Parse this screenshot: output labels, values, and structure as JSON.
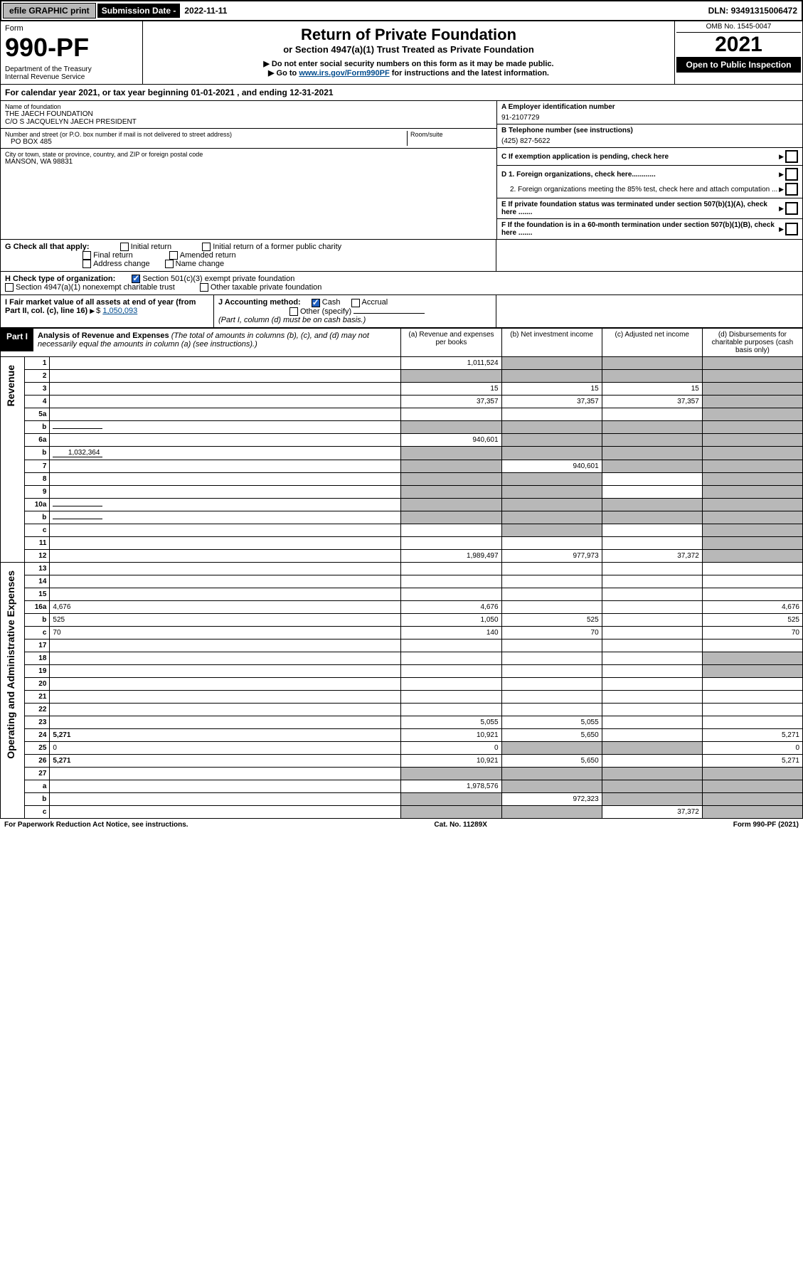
{
  "topbar": {
    "efile": "efile GRAPHIC print",
    "sub_label": "Submission Date - ",
    "sub_date": "2022-11-11",
    "dln_label": "DLN: ",
    "dln": "93491315006472"
  },
  "header": {
    "form_word": "Form",
    "form_no": "990-PF",
    "dept": "Department of the Treasury",
    "irs": "Internal Revenue Service",
    "title": "Return of Private Foundation",
    "subtitle": "or Section 4947(a)(1) Trust Treated as Private Foundation",
    "inst1": "▶ Do not enter social security numbers on this form as it may be made public.",
    "inst2_pre": "▶ Go to ",
    "inst2_link": "www.irs.gov/Form990PF",
    "inst2_post": " for instructions and the latest information.",
    "omb": "OMB No. 1545-0047",
    "year": "2021",
    "open": "Open to Public Inspection"
  },
  "cal_year": "For calendar year 2021, or tax year beginning 01-01-2021                           , and ending 12-31-2021",
  "foundation": {
    "name_label": "Name of foundation",
    "name1": "THE JAECH FOUNDATION",
    "name2": "C/O S JACQUELYN JAECH PRESIDENT",
    "addr_label": "Number and street (or P.O. box number if mail is not delivered to street address)",
    "addr": "PO BOX 485",
    "room_label": "Room/suite",
    "city_label": "City or town, state or province, country, and ZIP or foreign postal code",
    "city": "MANSON, WA  98831"
  },
  "right_info": {
    "a_label": "A Employer identification number",
    "a_val": "91-2107729",
    "b_label": "B Telephone number (see instructions)",
    "b_val": "(425) 827-5622",
    "c_label": "C If exemption application is pending, check here",
    "d1": "D 1. Foreign organizations, check here............",
    "d2": "2. Foreign organizations meeting the 85% test, check here and attach computation ...",
    "e_label": "E  If private foundation status was terminated under section 507(b)(1)(A), check here .......",
    "f_label": "F  If the foundation is in a 60-month termination under section 507(b)(1)(B), check here ......."
  },
  "g": {
    "label": "G Check all that apply:",
    "opts": [
      "Initial return",
      "Final return",
      "Address change",
      "Initial return of a former public charity",
      "Amended return",
      "Name change"
    ]
  },
  "h": {
    "label": "H Check type of organization:",
    "opt1": "Section 501(c)(3) exempt private foundation",
    "opt2": "Section 4947(a)(1) nonexempt charitable trust",
    "opt3": "Other taxable private foundation"
  },
  "i": {
    "label": "I Fair market value of all assets at end of year (from Part II, col. (c), line 16)",
    "val": "1,050,093"
  },
  "j": {
    "label": "J Accounting method:",
    "cash": "Cash",
    "accrual": "Accrual",
    "other": "Other (specify)",
    "note": "(Part I, column (d) must be on cash basis.)"
  },
  "part1": {
    "label": "Part I",
    "title": "Analysis of Revenue and Expenses",
    "note": " (The total of amounts in columns (b), (c), and (d) may not necessarily equal the amounts in column (a) (see instructions).)",
    "col_a": "(a)  Revenue and expenses per books",
    "col_b": "(b)  Net investment income",
    "col_c": "(c)  Adjusted net income",
    "col_d": "(d)  Disbursements for charitable purposes (cash basis only)"
  },
  "side_labels": {
    "revenue": "Revenue",
    "expenses": "Operating and Administrative Expenses"
  },
  "rows": [
    {
      "n": "1",
      "d": "",
      "a": "1,011,524",
      "b": "",
      "c": "",
      "grey": [
        "b",
        "c",
        "d"
      ]
    },
    {
      "n": "2",
      "d": "",
      "a": "",
      "b": "",
      "c": "",
      "grey": [
        "a",
        "b",
        "c",
        "d"
      ]
    },
    {
      "n": "3",
      "d": "",
      "a": "15",
      "b": "15",
      "c": "15",
      "grey": [
        "d"
      ]
    },
    {
      "n": "4",
      "d": "",
      "a": "37,357",
      "b": "37,357",
      "c": "37,357",
      "grey": [
        "d"
      ]
    },
    {
      "n": "5a",
      "d": "",
      "a": "",
      "b": "",
      "c": "",
      "grey": [
        "d"
      ]
    },
    {
      "n": "b",
      "d": "",
      "a": "",
      "b": "",
      "c": "",
      "grey": [
        "a",
        "b",
        "c",
        "d"
      ],
      "inline": true
    },
    {
      "n": "6a",
      "d": "",
      "a": "940,601",
      "b": "",
      "c": "",
      "grey": [
        "b",
        "c",
        "d"
      ]
    },
    {
      "n": "b",
      "d": "",
      "a": "",
      "b": "",
      "c": "",
      "grey": [
        "a",
        "b",
        "c",
        "d"
      ],
      "inline": true,
      "inline_val": "1,032,364"
    },
    {
      "n": "7",
      "d": "",
      "a": "",
      "b": "940,601",
      "c": "",
      "grey": [
        "a",
        "c",
        "d"
      ]
    },
    {
      "n": "8",
      "d": "",
      "a": "",
      "b": "",
      "c": "",
      "grey": [
        "a",
        "b",
        "d"
      ]
    },
    {
      "n": "9",
      "d": "",
      "a": "",
      "b": "",
      "c": "",
      "grey": [
        "a",
        "b",
        "d"
      ]
    },
    {
      "n": "10a",
      "d": "",
      "a": "",
      "b": "",
      "c": "",
      "grey": [
        "a",
        "b",
        "c",
        "d"
      ],
      "inline": true
    },
    {
      "n": "b",
      "d": "",
      "a": "",
      "b": "",
      "c": "",
      "grey": [
        "a",
        "b",
        "c",
        "d"
      ],
      "inline": true
    },
    {
      "n": "c",
      "d": "",
      "a": "",
      "b": "",
      "c": "",
      "grey": [
        "b",
        "d"
      ]
    },
    {
      "n": "11",
      "d": "",
      "a": "",
      "b": "",
      "c": "",
      "grey": [
        "d"
      ]
    },
    {
      "n": "12",
      "d": "",
      "a": "1,989,497",
      "b": "977,973",
      "c": "37,372",
      "grey": [
        "d"
      ],
      "bold": true
    },
    {
      "n": "13",
      "d": "",
      "a": "",
      "b": "",
      "c": ""
    },
    {
      "n": "14",
      "d": "",
      "a": "",
      "b": "",
      "c": ""
    },
    {
      "n": "15",
      "d": "",
      "a": "",
      "b": "",
      "c": ""
    },
    {
      "n": "16a",
      "d": "4,676",
      "a": "4,676",
      "b": "",
      "c": ""
    },
    {
      "n": "b",
      "d": "525",
      "a": "1,050",
      "b": "525",
      "c": ""
    },
    {
      "n": "c",
      "d": "70",
      "a": "140",
      "b": "70",
      "c": ""
    },
    {
      "n": "17",
      "d": "",
      "a": "",
      "b": "",
      "c": ""
    },
    {
      "n": "18",
      "d": "",
      "a": "",
      "b": "",
      "c": "",
      "grey": [
        "d"
      ]
    },
    {
      "n": "19",
      "d": "",
      "a": "",
      "b": "",
      "c": "",
      "grey": [
        "d"
      ]
    },
    {
      "n": "20",
      "d": "",
      "a": "",
      "b": "",
      "c": ""
    },
    {
      "n": "21",
      "d": "",
      "a": "",
      "b": "",
      "c": ""
    },
    {
      "n": "22",
      "d": "",
      "a": "",
      "b": "",
      "c": ""
    },
    {
      "n": "23",
      "d": "",
      "a": "5,055",
      "b": "5,055",
      "c": ""
    },
    {
      "n": "24",
      "d": "5,271",
      "a": "10,921",
      "b": "5,650",
      "c": "",
      "bold": true
    },
    {
      "n": "25",
      "d": "0",
      "a": "0",
      "b": "",
      "c": "",
      "grey": [
        "b",
        "c"
      ]
    },
    {
      "n": "26",
      "d": "5,271",
      "a": "10,921",
      "b": "5,650",
      "c": "",
      "bold": true
    },
    {
      "n": "27",
      "d": "",
      "a": "",
      "b": "",
      "c": "",
      "grey": [
        "a",
        "b",
        "c",
        "d"
      ]
    },
    {
      "n": "a",
      "d": "",
      "a": "1,978,576",
      "b": "",
      "c": "",
      "grey": [
        "b",
        "c",
        "d"
      ],
      "bold": true
    },
    {
      "n": "b",
      "d": "",
      "a": "",
      "b": "972,323",
      "c": "",
      "grey": [
        "a",
        "c",
        "d"
      ],
      "bold": true
    },
    {
      "n": "c",
      "d": "",
      "a": "",
      "b": "",
      "c": "37,372",
      "grey": [
        "a",
        "b",
        "d"
      ],
      "bold": true
    }
  ],
  "footer": {
    "left": "For Paperwork Reduction Act Notice, see instructions.",
    "mid": "Cat. No. 11289X",
    "right": "Form 990-PF (2021)"
  },
  "colors": {
    "black": "#000000",
    "grey": "#b8b8b8",
    "link": "#004b8d",
    "check": "#2060c0"
  }
}
